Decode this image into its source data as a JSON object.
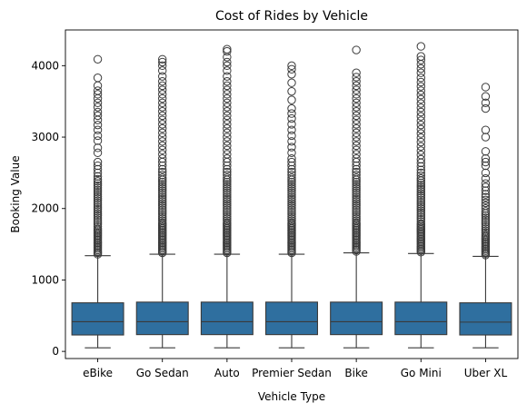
{
  "chart_data": {
    "type": "box",
    "title": "Cost of Rides by Vehicle",
    "xlabel": "Vehicle Type",
    "ylabel": "Booking Value",
    "ylim": [
      -100,
      4500
    ],
    "yticks": [
      0,
      1000,
      2000,
      3000,
      4000
    ],
    "grid": false,
    "box_color": "#2f6f9f",
    "line_color": "#3a3a3a",
    "categories": [
      "eBike",
      "Go Sedan",
      "Auto",
      "Premier Sedan",
      "Bike",
      "Go Mini",
      "Uber XL"
    ],
    "series": [
      {
        "category": "eBike",
        "whisker_low": 50,
        "q1": 230,
        "median": 415,
        "q3": 680,
        "whisker_high": 1340,
        "outliers": [
          1360,
          1380,
          1400,
          1420,
          1440,
          1460,
          1480,
          1500,
          1520,
          1540,
          1560,
          1580,
          1600,
          1620,
          1640,
          1660,
          1680,
          1700,
          1720,
          1750,
          1780,
          1810,
          1840,
          1870,
          1900,
          1930,
          1960,
          1990,
          2020,
          2050,
          2080,
          2110,
          2140,
          2170,
          2200,
          2230,
          2260,
          2290,
          2320,
          2350,
          2380,
          2410,
          2450,
          2500,
          2550,
          2600,
          2650,
          2780,
          2850,
          2950,
          3020,
          3100,
          3170,
          3240,
          3300,
          3350,
          3420,
          3480,
          3540,
          3600,
          3650,
          3720,
          3830,
          4090
        ]
      },
      {
        "category": "Go Sedan",
        "whisker_low": 50,
        "q1": 235,
        "median": 415,
        "q3": 690,
        "whisker_high": 1360,
        "outliers": [
          1380,
          1400,
          1420,
          1440,
          1460,
          1480,
          1500,
          1520,
          1540,
          1560,
          1580,
          1600,
          1620,
          1640,
          1660,
          1680,
          1700,
          1720,
          1740,
          1760,
          1780,
          1800,
          1830,
          1860,
          1890,
          1920,
          1950,
          1980,
          2010,
          2040,
          2070,
          2100,
          2130,
          2160,
          2190,
          2220,
          2250,
          2280,
          2310,
          2340,
          2370,
          2400,
          2430,
          2470,
          2510,
          2550,
          2600,
          2650,
          2700,
          2760,
          2820,
          2880,
          2940,
          3000,
          3060,
          3120,
          3180,
          3240,
          3300,
          3360,
          3420,
          3480,
          3540,
          3600,
          3660,
          3720,
          3780,
          3850,
          3930,
          4000,
          4050,
          4090
        ]
      },
      {
        "category": "Auto",
        "whisker_low": 50,
        "q1": 235,
        "median": 415,
        "q3": 690,
        "whisker_high": 1360,
        "outliers": [
          1380,
          1400,
          1420,
          1440,
          1460,
          1480,
          1500,
          1520,
          1540,
          1560,
          1580,
          1600,
          1620,
          1640,
          1660,
          1680,
          1700,
          1720,
          1740,
          1760,
          1780,
          1800,
          1830,
          1860,
          1890,
          1920,
          1950,
          1980,
          2010,
          2040,
          2070,
          2100,
          2130,
          2160,
          2190,
          2220,
          2250,
          2280,
          2310,
          2340,
          2370,
          2400,
          2430,
          2470,
          2510,
          2550,
          2600,
          2650,
          2700,
          2760,
          2820,
          2880,
          2940,
          3000,
          3060,
          3120,
          3180,
          3240,
          3300,
          3360,
          3420,
          3480,
          3540,
          3600,
          3660,
          3720,
          3780,
          3850,
          3930,
          4000,
          4050,
          4120,
          4200,
          4230
        ]
      },
      {
        "category": "Premier Sedan",
        "whisker_low": 50,
        "q1": 235,
        "median": 415,
        "q3": 690,
        "whisker_high": 1360,
        "outliers": [
          1380,
          1400,
          1420,
          1440,
          1460,
          1480,
          1500,
          1520,
          1540,
          1560,
          1580,
          1600,
          1620,
          1640,
          1660,
          1680,
          1700,
          1720,
          1740,
          1760,
          1780,
          1800,
          1830,
          1860,
          1890,
          1920,
          1950,
          1980,
          2010,
          2040,
          2070,
          2100,
          2130,
          2160,
          2190,
          2220,
          2250,
          2280,
          2310,
          2340,
          2370,
          2400,
          2430,
          2470,
          2510,
          2550,
          2600,
          2650,
          2700,
          2780,
          2860,
          2940,
          3020,
          3100,
          3180,
          3260,
          3330,
          3400,
          3520,
          3640,
          3760,
          3880,
          3950,
          4000
        ]
      },
      {
        "category": "Bike",
        "whisker_low": 50,
        "q1": 235,
        "median": 415,
        "q3": 690,
        "whisker_high": 1380,
        "outliers": [
          1400,
          1420,
          1440,
          1460,
          1480,
          1500,
          1520,
          1540,
          1560,
          1580,
          1600,
          1620,
          1640,
          1660,
          1680,
          1700,
          1720,
          1740,
          1760,
          1780,
          1800,
          1830,
          1860,
          1890,
          1920,
          1950,
          1980,
          2010,
          2040,
          2070,
          2100,
          2130,
          2160,
          2190,
          2220,
          2250,
          2280,
          2310,
          2340,
          2370,
          2400,
          2430,
          2470,
          2510,
          2550,
          2600,
          2650,
          2700,
          2760,
          2820,
          2880,
          2940,
          3000,
          3060,
          3120,
          3180,
          3240,
          3300,
          3360,
          3420,
          3480,
          3540,
          3600,
          3660,
          3720,
          3780,
          3840,
          3900,
          4220
        ]
      },
      {
        "category": "Go Mini",
        "whisker_low": 50,
        "q1": 235,
        "median": 415,
        "q3": 690,
        "whisker_high": 1370,
        "outliers": [
          1390,
          1410,
          1430,
          1450,
          1470,
          1490,
          1510,
          1530,
          1550,
          1570,
          1590,
          1610,
          1630,
          1650,
          1670,
          1690,
          1710,
          1730,
          1750,
          1770,
          1790,
          1820,
          1850,
          1880,
          1910,
          1940,
          1970,
          2000,
          2030,
          2060,
          2090,
          2120,
          2150,
          2180,
          2210,
          2240,
          2270,
          2300,
          2330,
          2360,
          2390,
          2420,
          2460,
          2500,
          2540,
          2590,
          2640,
          2690,
          2750,
          2810,
          2870,
          2930,
          2990,
          3050,
          3110,
          3170,
          3230,
          3290,
          3350,
          3410,
          3470,
          3530,
          3590,
          3650,
          3710,
          3770,
          3830,
          3900,
          3960,
          4020,
          4080,
          4130,
          4270
        ]
      },
      {
        "category": "Uber XL",
        "whisker_low": 50,
        "q1": 230,
        "median": 410,
        "q3": 680,
        "whisker_high": 1330,
        "outliers": [
          1350,
          1370,
          1390,
          1410,
          1430,
          1450,
          1470,
          1490,
          1510,
          1530,
          1550,
          1570,
          1590,
          1610,
          1630,
          1660,
          1690,
          1720,
          1750,
          1780,
          1810,
          1840,
          1870,
          1900,
          1930,
          1960,
          2000,
          2040,
          2080,
          2120,
          2160,
          2200,
          2250,
          2300,
          2350,
          2420,
          2500,
          2600,
          2650,
          2700,
          2800,
          3000,
          3100,
          3400,
          3480,
          3570,
          3700
        ]
      }
    ]
  }
}
